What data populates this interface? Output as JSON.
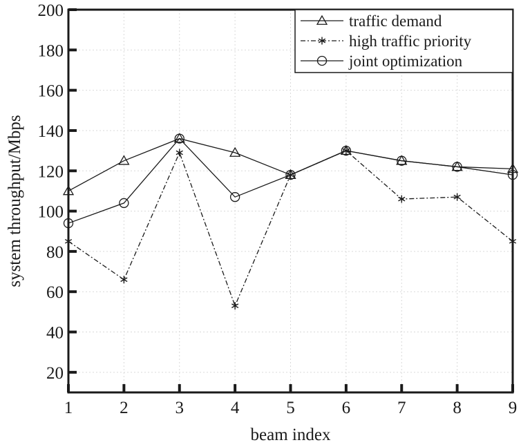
{
  "chart_data": {
    "type": "line",
    "title": "",
    "xlabel": "beam index",
    "ylabel": "system throughput/Mbps",
    "xlim": [
      1,
      9
    ],
    "ylim": [
      10,
      200
    ],
    "x_ticks": [
      1,
      2,
      3,
      4,
      5,
      6,
      7,
      8,
      9
    ],
    "y_ticks": [
      20,
      40,
      60,
      80,
      100,
      120,
      140,
      160,
      180,
      200
    ],
    "grid": true,
    "legend_position": "top-right",
    "x": [
      1,
      2,
      3,
      4,
      5,
      6,
      7,
      8,
      9
    ],
    "series": [
      {
        "name": "traffic demand",
        "marker": "triangle",
        "line_style": "solid",
        "values": [
          110,
          125,
          136,
          129,
          118,
          130,
          125,
          122,
          121
        ]
      },
      {
        "name": "high traffic priority",
        "marker": "asterisk",
        "line_style": "dash-dot",
        "values": [
          85,
          66,
          129,
          53,
          118,
          130,
          106,
          107,
          85
        ]
      },
      {
        "name": "joint optimization",
        "marker": "circle",
        "line_style": "solid",
        "values": [
          94,
          104,
          136,
          107,
          118,
          130,
          125,
          122,
          118
        ]
      }
    ]
  }
}
